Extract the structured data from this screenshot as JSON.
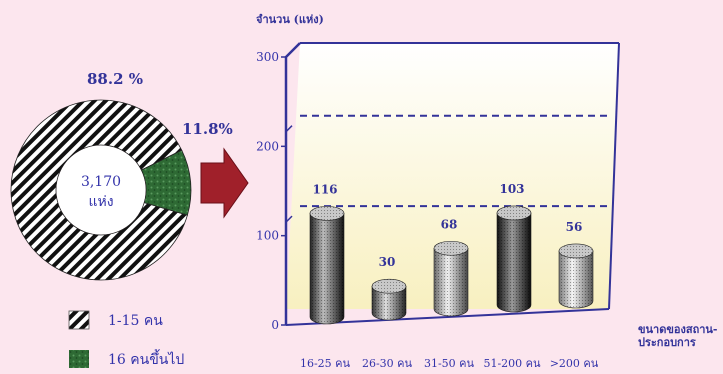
{
  "donut": {
    "center_value": "3,170",
    "center_unit": "แห่ง",
    "slices": [
      {
        "label": "88.2 %",
        "value": 88.2,
        "legend": "1-15  คน",
        "pattern": "stripes"
      },
      {
        "label": "11.8%",
        "value": 11.8,
        "legend": "16  คนขึ้นไป",
        "pattern": "green"
      }
    ]
  },
  "chart_data": {
    "type": "bar",
    "ylabel": "จำนวน (แห่ง)",
    "xlabel": "ขนาดของสถาน-\nประกอบการ",
    "ylim": [
      0,
      300
    ],
    "yticks": [
      "0",
      "100",
      "200",
      "300"
    ],
    "categories": [
      "16-25 คน",
      "26-30 คน",
      "31-50 คน",
      "51-200 คน",
      ">200 คน"
    ],
    "values": [
      116,
      30,
      68,
      103,
      56
    ],
    "reference_lines": [
      116,
      218
    ],
    "colors": {
      "accent": "#333399",
      "arrow": "#a0202a",
      "wall_top": "#ffffff",
      "wall_bottom": "#f8f0c0"
    }
  }
}
